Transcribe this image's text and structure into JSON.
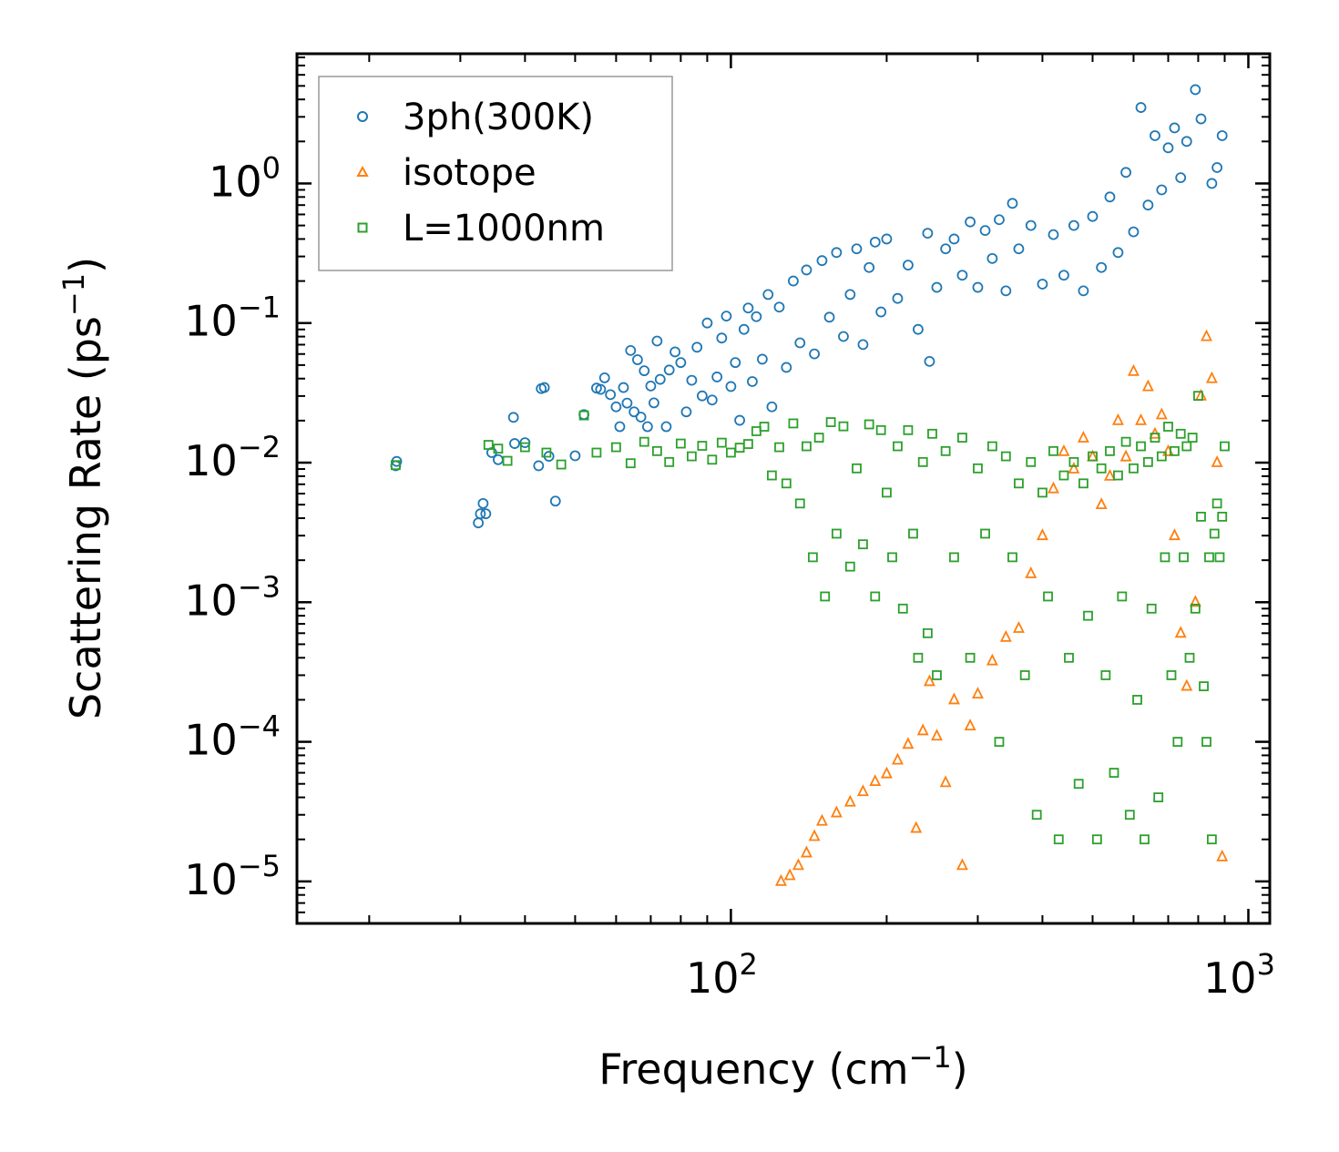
{
  "chart_data": {
    "type": "scatter",
    "title": "",
    "xlabel": "Frequency (cm",
    "xlabel_sup": "−1",
    "xlabel_end": ")",
    "ylabel": "Scattering Rate (ps",
    "ylabel_sup": "−1",
    "ylabel_end": ")",
    "xscale": "log",
    "yscale": "log",
    "xlim": [
      14.5,
      1100
    ],
    "ylim": [
      5e-06,
      8.5
    ],
    "legend_position": "top-left",
    "x_ticks": [
      {
        "value": 100,
        "base": "10",
        "exp": "2"
      },
      {
        "value": 1000,
        "base": "10",
        "exp": "3"
      }
    ],
    "y_ticks": [
      {
        "value": 1e-05,
        "base": "10",
        "exp": "−5"
      },
      {
        "value": 0.0001,
        "base": "10",
        "exp": "−4"
      },
      {
        "value": 0.001,
        "base": "10",
        "exp": "−3"
      },
      {
        "value": 0.01,
        "base": "10",
        "exp": "−2"
      },
      {
        "value": 0.1,
        "base": "10",
        "exp": "−1"
      },
      {
        "value": 1,
        "base": "10",
        "exp": "0"
      }
    ],
    "series": [
      {
        "name": "3ph(300K)",
        "color": "#1f77b4",
        "marker": "circle",
        "points": [
          [
            22.5,
            0.0095
          ],
          [
            22.6,
            0.0102
          ],
          [
            32.5,
            0.0037
          ],
          [
            32.8,
            0.0043
          ],
          [
            33.2,
            0.0051
          ],
          [
            33.6,
            0.0043
          ],
          [
            34.5,
            0.0118
          ],
          [
            35.5,
            0.0105
          ],
          [
            38,
            0.0211
          ],
          [
            38.2,
            0.0137
          ],
          [
            40,
            0.0139
          ],
          [
            42.5,
            0.0095
          ],
          [
            43,
            0.0339
          ],
          [
            43.6,
            0.0345
          ],
          [
            44.5,
            0.0111
          ],
          [
            45.8,
            0.0053
          ],
          [
            50,
            0.0112
          ],
          [
            52,
            0.0221
          ],
          [
            55,
            0.0342
          ],
          [
            56,
            0.0335
          ],
          [
            57,
            0.0405
          ],
          [
            58.5,
            0.0307
          ],
          [
            60,
            0.0251
          ],
          [
            61,
            0.0181
          ],
          [
            62,
            0.0345
          ],
          [
            63,
            0.0267
          ],
          [
            64,
            0.0636
          ],
          [
            65,
            0.0231
          ],
          [
            66,
            0.0546
          ],
          [
            67,
            0.0212
          ],
          [
            68,
            0.0455
          ],
          [
            69,
            0.0181
          ],
          [
            70,
            0.0354
          ],
          [
            71,
            0.0268
          ],
          [
            72,
            0.0743
          ],
          [
            73,
            0.0395
          ],
          [
            75,
            0.0181
          ],
          [
            76,
            0.0461
          ],
          [
            78,
            0.0621
          ],
          [
            80,
            0.0521
          ],
          [
            82,
            0.0231
          ],
          [
            84,
            0.0389
          ],
          [
            86,
            0.0671
          ],
          [
            88,
            0.0301
          ],
          [
            90,
            0.1001
          ],
          [
            92,
            0.0281
          ],
          [
            94,
            0.0411
          ],
          [
            96,
            0.0781
          ],
          [
            98,
            0.1121
          ],
          [
            100,
            0.0351
          ],
          [
            102,
            0.0521
          ],
          [
            104,
            0.0201
          ],
          [
            106,
            0.0901
          ],
          [
            108,
            0.1281
          ],
          [
            110,
            0.0381
          ],
          [
            112,
            0.1111
          ],
          [
            115,
            0.0551
          ],
          [
            118,
            0.1601
          ],
          [
            120,
            0.0251
          ],
          [
            124,
            0.1301
          ],
          [
            128,
            0.0481
          ],
          [
            132,
            0.2001
          ],
          [
            136,
            0.0721
          ],
          [
            140,
            0.2401
          ],
          [
            145,
            0.0601
          ],
          [
            150,
            0.2801
          ],
          [
            155,
            0.1101
          ],
          [
            160,
            0.3201
          ],
          [
            165,
            0.0801
          ],
          [
            170,
            0.1601
          ],
          [
            175,
            0.3401
          ],
          [
            180,
            0.0701
          ],
          [
            185,
            0.2501
          ],
          [
            190,
            0.3801
          ],
          [
            195,
            0.1201
          ],
          [
            200,
            0.4001
          ],
          [
            210,
            0.1501
          ],
          [
            220,
            0.2601
          ],
          [
            230,
            0.0901
          ],
          [
            240,
            0.4401
          ],
          [
            242,
            0.0531
          ],
          [
            250,
            0.1801
          ],
          [
            260,
            0.3401
          ],
          [
            270,
            0.4001
          ],
          [
            280,
            0.2201
          ],
          [
            290,
            0.5301
          ],
          [
            300,
            0.1801
          ],
          [
            310,
            0.4601
          ],
          [
            320,
            0.2901
          ],
          [
            330,
            0.5501
          ],
          [
            340,
            0.1701
          ],
          [
            350,
            0.7201
          ],
          [
            360,
            0.3401
          ],
          [
            380,
            0.5001
          ],
          [
            400,
            0.1901
          ],
          [
            420,
            0.4301
          ],
          [
            440,
            0.2201
          ],
          [
            460,
            0.5001
          ],
          [
            480,
            0.1701
          ],
          [
            500,
            0.5801
          ],
          [
            520,
            0.2501
          ],
          [
            540,
            0.8001
          ],
          [
            560,
            0.3201
          ],
          [
            580,
            1.2001
          ],
          [
            600,
            0.4501
          ],
          [
            620,
            3.5001
          ],
          [
            640,
            0.7001
          ],
          [
            660,
            2.2001
          ],
          [
            680,
            0.9001
          ],
          [
            700,
            1.8001
          ],
          [
            720,
            2.5001
          ],
          [
            740,
            1.1001
          ],
          [
            760,
            2.0001
          ],
          [
            790,
            4.7001
          ],
          [
            810,
            2.9001
          ],
          [
            850,
            1.0001
          ],
          [
            870,
            1.3001
          ],
          [
            890,
            2.2001
          ]
        ]
      },
      {
        "name": "isotope",
        "color": "#ff7f0e",
        "marker": "triangle",
        "points": [
          [
            125,
            1e-05
          ],
          [
            130,
            1.1e-05
          ],
          [
            135,
            1.3e-05
          ],
          [
            140,
            1.6e-05
          ],
          [
            145,
            2.1e-05
          ],
          [
            150,
            2.7e-05
          ],
          [
            160,
            3.1e-05
          ],
          [
            170,
            3.7e-05
          ],
          [
            180,
            4.4e-05
          ],
          [
            190,
            5.2e-05
          ],
          [
            200,
            5.9e-05
          ],
          [
            210,
            7.4e-05
          ],
          [
            220,
            9.6e-05
          ],
          [
            228,
            2.4e-05
          ],
          [
            235,
            0.00012
          ],
          [
            242,
            0.00027
          ],
          [
            250,
            0.00011
          ],
          [
            260,
            5.1e-05
          ],
          [
            270,
            0.0002
          ],
          [
            280,
            1.3e-05
          ],
          [
            290,
            0.00013
          ],
          [
            300,
            0.00022
          ],
          [
            320,
            0.00038
          ],
          [
            340,
            0.00056
          ],
          [
            360,
            0.00065
          ],
          [
            380,
            0.0016
          ],
          [
            400,
            0.003
          ],
          [
            420,
            0.0065
          ],
          [
            440,
            0.012
          ],
          [
            460,
            0.009
          ],
          [
            480,
            0.015
          ],
          [
            500,
            0.011
          ],
          [
            520,
            0.005
          ],
          [
            540,
            0.008
          ],
          [
            560,
            0.02
          ],
          [
            580,
            0.011
          ],
          [
            600,
            0.045
          ],
          [
            620,
            0.02
          ],
          [
            640,
            0.035
          ],
          [
            660,
            0.016
          ],
          [
            680,
            0.022
          ],
          [
            700,
            0.012
          ],
          [
            720,
            0.003
          ],
          [
            740,
            0.0006
          ],
          [
            760,
            0.00025
          ],
          [
            790,
            0.001
          ],
          [
            810,
            0.03
          ],
          [
            830,
            0.08
          ],
          [
            850,
            0.04
          ],
          [
            870,
            0.01
          ],
          [
            890,
            1.5e-05
          ]
        ]
      },
      {
        "name": "L=1000nm",
        "color": "#2ca02c",
        "marker": "square",
        "points": [
          [
            22.5,
            0.0096
          ],
          [
            34,
            0.0134
          ],
          [
            35.5,
            0.0126
          ],
          [
            37,
            0.0103
          ],
          [
            40,
            0.0129
          ],
          [
            44,
            0.0118
          ],
          [
            47,
            0.0097
          ],
          [
            52,
            0.0218
          ],
          [
            55,
            0.0118
          ],
          [
            60,
            0.0129
          ],
          [
            64,
            0.0099
          ],
          [
            68,
            0.0141
          ],
          [
            72,
            0.0121
          ],
          [
            76,
            0.0101
          ],
          [
            80,
            0.0137
          ],
          [
            84,
            0.0111
          ],
          [
            88,
            0.0132
          ],
          [
            92,
            0.0105
          ],
          [
            96,
            0.0139
          ],
          [
            100,
            0.0118
          ],
          [
            104,
            0.0128
          ],
          [
            108,
            0.0136
          ],
          [
            112,
            0.0168
          ],
          [
            116,
            0.0181
          ],
          [
            120,
            0.0081
          ],
          [
            124,
            0.0129
          ],
          [
            128,
            0.0071
          ],
          [
            132,
            0.0191
          ],
          [
            136,
            0.0051
          ],
          [
            140,
            0.0131
          ],
          [
            144,
            0.0021
          ],
          [
            148,
            0.0151
          ],
          [
            152,
            0.0011
          ],
          [
            156,
            0.0195
          ],
          [
            160,
            0.0031
          ],
          [
            165,
            0.0182
          ],
          [
            170,
            0.0018
          ],
          [
            175,
            0.0091
          ],
          [
            180,
            0.0026
          ],
          [
            185,
            0.0188
          ],
          [
            190,
            0.0011
          ],
          [
            195,
            0.0171
          ],
          [
            200,
            0.0061
          ],
          [
            205,
            0.0021
          ],
          [
            210,
            0.0131
          ],
          [
            215,
            0.0009
          ],
          [
            220,
            0.0171
          ],
          [
            225,
            0.0031
          ],
          [
            230,
            0.0004
          ],
          [
            235,
            0.0101
          ],
          [
            240,
            0.0006
          ],
          [
            245,
            0.0161
          ],
          [
            250,
            0.0003
          ],
          [
            260,
            0.0121
          ],
          [
            270,
            0.0021
          ],
          [
            280,
            0.0151
          ],
          [
            290,
            0.0004
          ],
          [
            300,
            0.0091
          ],
          [
            310,
            0.0031
          ],
          [
            320,
            0.0131
          ],
          [
            330,
            0.0001
          ],
          [
            340,
            0.0111
          ],
          [
            350,
            0.0021
          ],
          [
            360,
            0.0071
          ],
          [
            370,
            0.0003
          ],
          [
            380,
            0.0101
          ],
          [
            390,
            3e-05
          ],
          [
            400,
            0.0061
          ],
          [
            410,
            0.0011
          ],
          [
            420,
            0.0121
          ],
          [
            430,
            2e-05
          ],
          [
            440,
            0.0081
          ],
          [
            450,
            0.0004
          ],
          [
            460,
            0.0101
          ],
          [
            470,
            5e-05
          ],
          [
            480,
            0.0071
          ],
          [
            490,
            0.0008
          ],
          [
            500,
            0.0111
          ],
          [
            510,
            2e-05
          ],
          [
            520,
            0.0091
          ],
          [
            530,
            0.0003
          ],
          [
            540,
            0.0121
          ],
          [
            550,
            6e-05
          ],
          [
            560,
            0.0081
          ],
          [
            570,
            0.0011
          ],
          [
            580,
            0.0141
          ],
          [
            590,
            3e-05
          ],
          [
            600,
            0.0091
          ],
          [
            610,
            0.0002
          ],
          [
            620,
            0.0131
          ],
          [
            630,
            2e-05
          ],
          [
            640,
            0.0101
          ],
          [
            650,
            0.0009
          ],
          [
            660,
            0.0151
          ],
          [
            670,
            4e-05
          ],
          [
            680,
            0.0111
          ],
          [
            690,
            0.0021
          ],
          [
            700,
            0.0181
          ],
          [
            710,
            0.0003
          ],
          [
            720,
            0.0121
          ],
          [
            730,
            0.0001
          ],
          [
            740,
            0.0161
          ],
          [
            750,
            0.0021
          ],
          [
            760,
            0.0131
          ],
          [
            770,
            0.0004
          ],
          [
            780,
            0.0151
          ],
          [
            790,
            0.0009
          ],
          [
            800,
            0.0301
          ],
          [
            810,
            0.0041
          ],
          [
            820,
            0.00025
          ],
          [
            830,
            0.0001
          ],
          [
            840,
            0.0021
          ],
          [
            850,
            2e-05
          ],
          [
            860,
            0.0031
          ],
          [
            870,
            0.0051
          ],
          [
            880,
            0.0021
          ],
          [
            890,
            0.0041
          ],
          [
            900,
            0.0131
          ]
        ]
      }
    ]
  }
}
